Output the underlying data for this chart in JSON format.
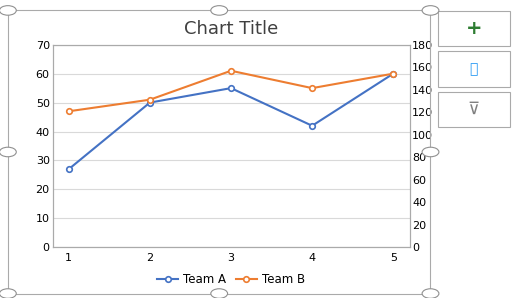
{
  "title": "Chart Title",
  "x": [
    1,
    2,
    3,
    4,
    5
  ],
  "team_a": [
    27,
    50,
    55,
    42,
    60
  ],
  "team_b": [
    47,
    51,
    61,
    55,
    60
  ],
  "team_a_color": "#4472C4",
  "team_b_color": "#ED7D31",
  "left_ylim": [
    0,
    70
  ],
  "right_ylim": [
    0,
    180
  ],
  "left_yticks": [
    0,
    10,
    20,
    30,
    40,
    50,
    60,
    70
  ],
  "right_yticks": [
    0,
    20,
    40,
    60,
    80,
    100,
    120,
    140,
    160,
    180
  ],
  "xticks": [
    1,
    2,
    3,
    4,
    5
  ],
  "legend_labels": [
    "Team A",
    "Team B"
  ],
  "bg_color": "#FFFFFF",
  "plot_bg_color": "#FFFFFF",
  "grid_color": "#D9D9D9",
  "border_color": "#AAAAAA",
  "title_fontsize": 13,
  "axis_fontsize": 8,
  "legend_fontsize": 8.5,
  "marker": "o",
  "marker_size": 4,
  "linewidth": 1.5,
  "handle_color": "#808080",
  "icon_border_color": "#AAAAAA",
  "icon_plus_color": "#2E7D32",
  "icon_brush_color": "#2196F3",
  "icon_filter_color": "#808080"
}
